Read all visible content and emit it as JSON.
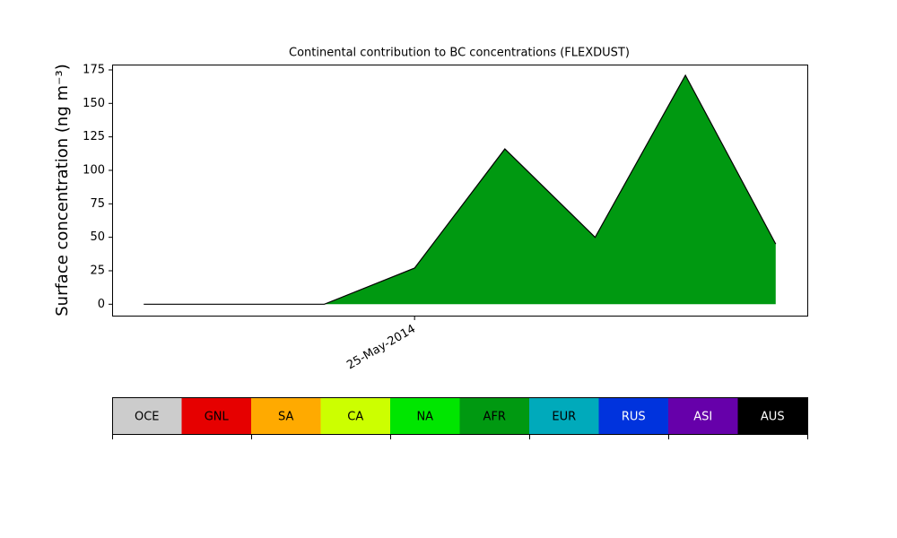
{
  "chart_data": {
    "type": "stackedarea",
    "title": "Continental contribution to BC concentrations (FLEXDUST)",
    "y_label": "Surface concentration (ng m⁻³)",
    "categories": [
      null,
      null,
      null,
      "25-May-2014",
      null,
      null,
      null,
      null
    ],
    "series": [
      {
        "name": "OCE",
        "color": "#cccccc",
        "values": [
          0,
          0,
          0,
          0,
          0,
          0,
          0,
          0
        ]
      },
      {
        "name": "GNL",
        "color": "#e60000",
        "values": [
          0,
          0,
          0,
          0,
          0,
          0,
          0,
          0
        ]
      },
      {
        "name": "SA",
        "color": "#ffaa00",
        "values": [
          0,
          0,
          0,
          0,
          0,
          0,
          0,
          0
        ]
      },
      {
        "name": "CA",
        "color": "#ccff00",
        "values": [
          0,
          0,
          0,
          0,
          0,
          0,
          0,
          0
        ]
      },
      {
        "name": "NA",
        "color": "#00e600",
        "values": [
          0,
          0,
          0,
          0,
          0,
          0,
          0,
          0
        ]
      },
      {
        "name": "AFR",
        "color": "#009911",
        "values": [
          0,
          0,
          0,
          27,
          116,
          50,
          171,
          45
        ]
      },
      {
        "name": "EUR",
        "color": "#00aabb",
        "values": [
          0,
          0,
          0,
          0,
          0,
          0,
          0,
          0
        ]
      },
      {
        "name": "RUS",
        "color": "#0033dd",
        "values": [
          0,
          0,
          0,
          0,
          0,
          0,
          0,
          0
        ]
      },
      {
        "name": "ASI",
        "color": "#6600aa",
        "values": [
          0,
          0,
          0,
          0,
          0,
          0,
          0,
          0
        ]
      },
      {
        "name": "AUS",
        "color": "#000000",
        "values": [
          0,
          0,
          0,
          0,
          0,
          0,
          0,
          0
        ]
      }
    ],
    "ylim": [
      -8.5,
      179
    ],
    "yticks": [
      0,
      25,
      50,
      75,
      100,
      125,
      150,
      175
    ]
  }
}
